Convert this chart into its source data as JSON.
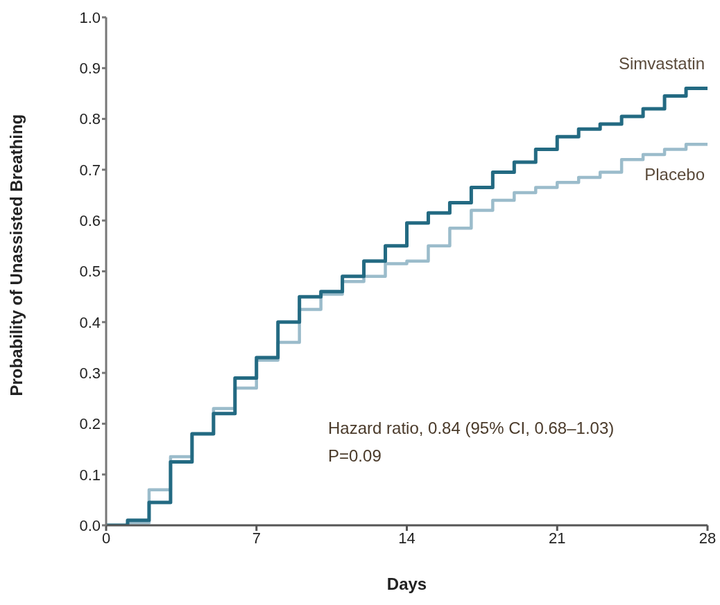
{
  "chart_data": {
    "type": "step",
    "xlabel": "Days",
    "ylabel": "Probability of Unassisted Breathing",
    "x": [
      0,
      1,
      2,
      3,
      4,
      5,
      6,
      7,
      8,
      9,
      10,
      11,
      12,
      13,
      14,
      15,
      16,
      17,
      18,
      19,
      20,
      21,
      22,
      23,
      24,
      25,
      26,
      27,
      28
    ],
    "series": [
      {
        "name": "Simvastatin",
        "color": "#236a82",
        "values": [
          0,
          0.01,
          0.045,
          0.125,
          0.18,
          0.22,
          0.29,
          0.33,
          0.4,
          0.45,
          0.46,
          0.49,
          0.52,
          0.55,
          0.595,
          0.615,
          0.635,
          0.665,
          0.695,
          0.715,
          0.74,
          0.765,
          0.78,
          0.79,
          0.805,
          0.82,
          0.845,
          0.86,
          0.86
        ]
      },
      {
        "name": "Placebo",
        "color": "#9bbccb",
        "values": [
          0,
          0.005,
          0.07,
          0.135,
          0.18,
          0.23,
          0.27,
          0.325,
          0.36,
          0.425,
          0.455,
          0.48,
          0.49,
          0.515,
          0.52,
          0.55,
          0.585,
          0.62,
          0.64,
          0.655,
          0.665,
          0.675,
          0.685,
          0.695,
          0.72,
          0.73,
          0.74,
          0.75,
          0.75
        ]
      }
    ],
    "xlim": [
      0,
      28
    ],
    "xticks": [
      0,
      7,
      14,
      21,
      28
    ],
    "ylim": [
      0,
      1
    ],
    "yticks": [
      {
        "value": 0,
        "label": "0.0"
      },
      0.1,
      0.2,
      0.3,
      0.4,
      0.5,
      0.6,
      0.7,
      0.8,
      0.9,
      {
        "value": 1,
        "label": "1.0"
      }
    ],
    "annotations": [
      "Hazard ratio, 0.84 (95% CI, 0.68–1.03)",
      "P=0.09"
    ],
    "grid": false,
    "legend": false,
    "marker": "none",
    "line_style": "solid"
  }
}
